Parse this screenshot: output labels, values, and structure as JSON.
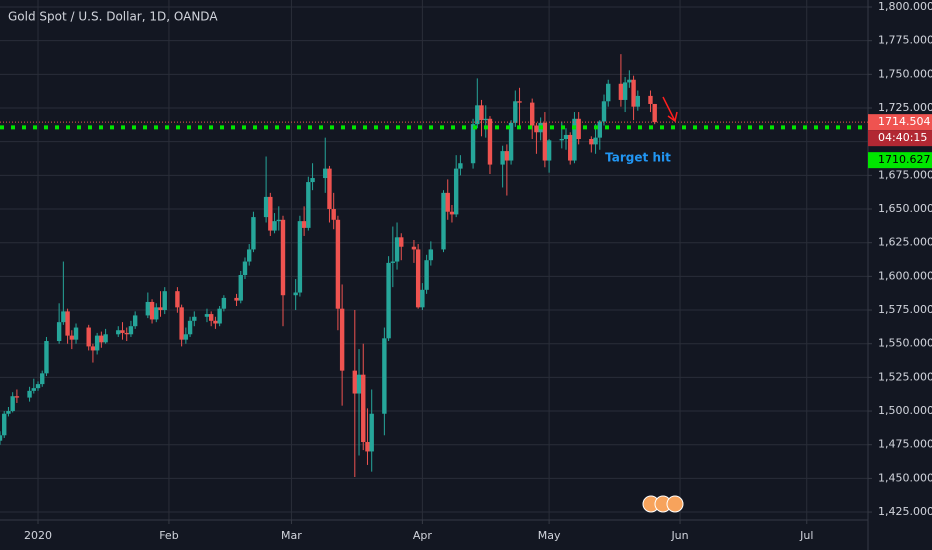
{
  "chart_data": {
    "type": "candlestick",
    "title": "Gold Spot / U.S. Dollar, 1D, OANDA",
    "annotation": "Target hit",
    "countdown": "04:40:15",
    "price_line": 1714.504,
    "target_line": 1710.627,
    "up_color": "#26a69a",
    "down_color": "#ef5350",
    "target_color": "#00e600",
    "grid": true,
    "xlim": [
      -9,
      196.5
    ],
    "xticks": [
      {
        "value": 0,
        "label": "2020"
      },
      {
        "value": 31,
        "label": "Feb"
      },
      {
        "value": 60,
        "label": "Mar"
      },
      {
        "value": 91,
        "label": "Apr"
      },
      {
        "value": 121,
        "label": "May"
      },
      {
        "value": 152,
        "label": "Jun"
      },
      {
        "value": 182,
        "label": "Jul"
      }
    ],
    "ylim": [
      1419.1,
      1805.2
    ],
    "yticks": [
      {
        "value": 1425,
        "label": "1,425.000"
      },
      {
        "value": 1450,
        "label": "1,450.000"
      },
      {
        "value": 1475,
        "label": "1,475.000"
      },
      {
        "value": 1500,
        "label": "1,500.000"
      },
      {
        "value": 1525,
        "label": "1,525.000"
      },
      {
        "value": 1550,
        "label": "1,550.000"
      },
      {
        "value": 1575,
        "label": "1,575.000"
      },
      {
        "value": 1600,
        "label": "1,600.000"
      },
      {
        "value": 1625,
        "label": "1,625.000"
      },
      {
        "value": 1650,
        "label": "1,650.000"
      },
      {
        "value": 1675,
        "label": "1,675.000"
      },
      {
        "value": 1700,
        "label": "1,700.000"
      },
      {
        "value": 1725,
        "label": "1,725.000"
      },
      {
        "value": 1750,
        "label": "1,750.000"
      },
      {
        "value": 1775,
        "label": "1,775.000"
      },
      {
        "value": 1800,
        "label": "1,800.000"
      }
    ],
    "x": [
      -9,
      -8,
      -7,
      -6,
      -5,
      -2,
      -1,
      0,
      1,
      2,
      5,
      6,
      7,
      8,
      9,
      12,
      13,
      14,
      15,
      16,
      19,
      20,
      21,
      22,
      23,
      26,
      27,
      28,
      29,
      30,
      33,
      34,
      35,
      36,
      37,
      40,
      41,
      42,
      43,
      44,
      47,
      48,
      49,
      50,
      51,
      54,
      55,
      56,
      57,
      58,
      61,
      62,
      63,
      64,
      65,
      68,
      69,
      70,
      71,
      72,
      75,
      76,
      77,
      78,
      79,
      82,
      83,
      84,
      85,
      86,
      89,
      90,
      91,
      92,
      93,
      96,
      97,
      98,
      99,
      100,
      103,
      104,
      105,
      106,
      107,
      110,
      111,
      112,
      113,
      114,
      117,
      118,
      119,
      120,
      121,
      124,
      125,
      126,
      127,
      128,
      131,
      132,
      133,
      134,
      135,
      138,
      139,
      140,
      141,
      142,
      145,
      146
    ],
    "open": [
      1478,
      1482,
      1498,
      1500,
      1511,
      1510,
      1515,
      1517,
      1520,
      1528,
      1552,
      1566,
      1574,
      1556,
      1553,
      1562,
      1548,
      1545,
      1556,
      1551,
      1557,
      1560,
      1558,
      1557,
      1563,
      1571,
      1581,
      1568,
      1577,
      1575,
      1589,
      1577,
      1553,
      1557,
      1567,
      1570,
      1572,
      1567,
      1565,
      1576,
      1584,
      1582,
      1601,
      1611,
      1620,
      1644,
      1659,
      1634,
      1641,
      1642,
      1586,
      1588,
      1641,
      1636,
      1670,
      1673,
      1680,
      1650,
      1642,
      1576,
      1530,
      1513,
      1527,
      1477,
      1470,
      1498,
      1554,
      1610,
      1611,
      1629,
      1622,
      1620,
      1577,
      1590,
      1612,
      1620,
      1662,
      1648,
      1646,
      1680,
      1684,
      1713,
      1727,
      1716,
      1717,
      1683,
      1693,
      1686,
      1714,
      1730,
      1729,
      1712,
      1707,
      1714,
      1686,
      1701,
      1702,
      1705,
      1686,
      1717,
      1702,
      1698,
      1703,
      1715,
      1730,
      1743,
      1731,
      1744,
      1746,
      1726,
      1734,
      1728
    ],
    "high": [
      1485,
      1500,
      1503,
      1514,
      1516,
      1518,
      1524,
      1522,
      1530,
      1555,
      1580,
      1611,
      1576,
      1560,
      1565,
      1564,
      1550,
      1558,
      1559,
      1561,
      1563,
      1566,
      1562,
      1567,
      1574,
      1588,
      1583,
      1580,
      1589,
      1592,
      1592,
      1579,
      1562,
      1570,
      1574,
      1576,
      1574,
      1570,
      1578,
      1586,
      1587,
      1604,
      1614,
      1624,
      1648,
      1689,
      1662,
      1647,
      1652,
      1645,
      1598,
      1645,
      1652,
      1674,
      1684,
      1703,
      1682,
      1662,
      1645,
      1594,
      1575,
      1546,
      1550,
      1502,
      1516,
      1562,
      1615,
      1637,
      1640,
      1632,
      1627,
      1624,
      1595,
      1616,
      1626,
      1664,
      1672,
      1653,
      1690,
      1690,
      1717,
      1747,
      1731,
      1727,
      1719,
      1697,
      1698,
      1716,
      1738,
      1740,
      1732,
      1714,
      1718,
      1722,
      1702,
      1715,
      1710,
      1707,
      1722,
      1722,
      1704,
      1713,
      1716,
      1735,
      1746,
      1765,
      1748,
      1753,
      1749,
      1738,
      1738,
      1728
    ],
    "low": [
      1475,
      1480,
      1496,
      1499,
      1506,
      1507,
      1513,
      1515,
      1518,
      1526,
      1550,
      1564,
      1550,
      1546,
      1550,
      1545,
      1536,
      1542,
      1547,
      1550,
      1555,
      1553,
      1552,
      1555,
      1561,
      1569,
      1565,
      1566,
      1570,
      1572,
      1573,
      1548,
      1550,
      1555,
      1563,
      1566,
      1563,
      1561,
      1563,
      1574,
      1578,
      1580,
      1598,
      1608,
      1618,
      1640,
      1630,
      1632,
      1634,
      1563,
      1575,
      1585,
      1630,
      1634,
      1664,
      1662,
      1640,
      1635,
      1560,
      1504,
      1451,
      1467,
      1471,
      1460,
      1455,
      1482,
      1552,
      1592,
      1605,
      1612,
      1610,
      1576,
      1575,
      1587,
      1608,
      1618,
      1642,
      1640,
      1644,
      1675,
      1680,
      1710,
      1704,
      1703,
      1676,
      1666,
      1660,
      1683,
      1711,
      1710,
      1702,
      1691,
      1701,
      1681,
      1677,
      1695,
      1694,
      1683,
      1684,
      1698,
      1692,
      1691,
      1694,
      1712,
      1726,
      1726,
      1722,
      1740,
      1716,
      1723,
      1722,
      1713
    ],
    "close": [
      1482,
      1498,
      1500,
      1511,
      1510,
      1515,
      1517,
      1520,
      1528,
      1552,
      1566,
      1574,
      1556,
      1553,
      1562,
      1548,
      1545,
      1556,
      1551,
      1557,
      1560,
      1558,
      1557,
      1563,
      1571,
      1581,
      1568,
      1577,
      1575,
      1589,
      1577,
      1553,
      1557,
      1567,
      1570,
      1572,
      1567,
      1565,
      1576,
      1584,
      1582,
      1601,
      1611,
      1620,
      1644,
      1659,
      1634,
      1641,
      1642,
      1586,
      1588,
      1641,
      1636,
      1670,
      1673,
      1680,
      1650,
      1642,
      1576,
      1530,
      1513,
      1527,
      1477,
      1470,
      1498,
      1554,
      1610,
      1611,
      1629,
      1622,
      1620,
      1577,
      1590,
      1612,
      1620,
      1662,
      1648,
      1646,
      1680,
      1684,
      1713,
      1727,
      1716,
      1717,
      1683,
      1693,
      1686,
      1714,
      1730,
      1729,
      1712,
      1707,
      1714,
      1686,
      1701,
      1702,
      1705,
      1686,
      1717,
      1702,
      1698,
      1703,
      1715,
      1730,
      1743,
      1731,
      1744,
      1746,
      1726,
      1734,
      1728,
      1714.504
    ]
  }
}
